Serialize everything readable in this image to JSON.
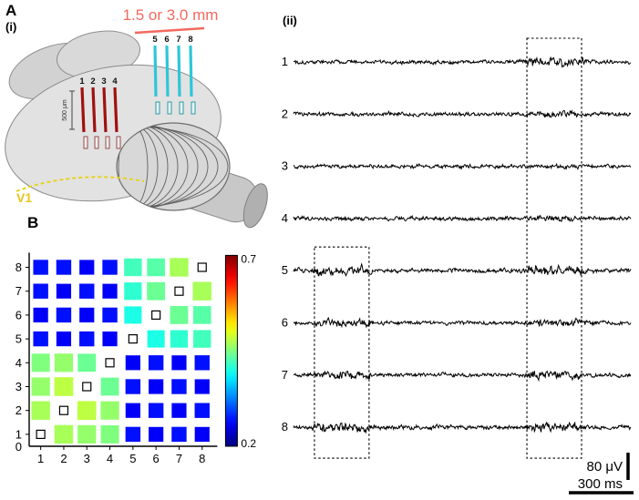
{
  "figure": {
    "panel_a": {
      "label": "A",
      "sub_i": "(i)",
      "sub_ii": "(ii)"
    },
    "panel_b": {
      "label": "B"
    },
    "brain": {
      "distance_annotation": "1.5 or 3.0 mm",
      "area_label": "V1",
      "depth_scale_label": "500 μm",
      "red_electrodes": [
        "1",
        "2",
        "3",
        "4"
      ],
      "cyan_electrodes": [
        "5",
        "6",
        "7",
        "8"
      ],
      "colors": {
        "annotation": "#f4695e",
        "red_array": "#a01010",
        "cyan_array": "#2ec6d8",
        "area_label_color": "#e6c619"
      }
    }
  },
  "chart_data": [
    {
      "type": "heatmap",
      "panel": "B",
      "description": "Pairwise correlation between electrodes 1-8; small open squares mark self-pairs on the diagonal; square size and color scale with correlation value",
      "x_ticklabels": [
        "1",
        "2",
        "3",
        "4",
        "5",
        "6",
        "7",
        "8"
      ],
      "y_ticklabels_top_to_bottom": [
        "8",
        "7",
        "6",
        "5",
        "4",
        "3",
        "2",
        "1"
      ],
      "origin_label": "0",
      "colorbar": {
        "max_label": "0.7",
        "min_label": "0.2",
        "vmin": 0.2,
        "vmax": 0.7,
        "colormap": "jet",
        "position": "right"
      },
      "rows_top_to_bottom": [
        {
          "y": "8",
          "values": [
            0.27,
            0.27,
            0.26,
            0.27,
            0.42,
            0.43,
            0.47,
            null
          ]
        },
        {
          "y": "7",
          "values": [
            0.27,
            0.26,
            0.27,
            0.26,
            0.41,
            0.44,
            null,
            0.47
          ]
        },
        {
          "y": "6",
          "values": [
            0.26,
            0.27,
            0.26,
            0.27,
            0.4,
            null,
            0.44,
            0.43
          ]
        },
        {
          "y": "5",
          "values": [
            0.27,
            0.26,
            0.27,
            0.26,
            null,
            0.4,
            0.41,
            0.42
          ]
        },
        {
          "y": "4",
          "values": [
            0.45,
            0.46,
            0.44,
            null,
            0.26,
            0.27,
            0.26,
            0.27
          ]
        },
        {
          "y": "3",
          "values": [
            0.46,
            0.48,
            null,
            0.44,
            0.27,
            0.26,
            0.27,
            0.26
          ]
        },
        {
          "y": "2",
          "values": [
            0.47,
            null,
            0.48,
            0.46,
            0.26,
            0.27,
            0.26,
            0.27
          ]
        },
        {
          "y": "1",
          "values": [
            null,
            0.47,
            0.46,
            0.45,
            0.27,
            0.26,
            0.27,
            0.26
          ]
        }
      ]
    },
    {
      "type": "line",
      "panel": "A(ii)",
      "description": "Continuous voltage traces recorded on electrodes 1-8; dashed boxes highlight correlated activity epochs",
      "trace_labels": [
        "1",
        "2",
        "3",
        "4",
        "5",
        "6",
        "7",
        "8"
      ],
      "scale_bar": {
        "voltage": "80 μV",
        "time": "300 ms"
      },
      "highlight_boxes": [
        {
          "trace_start": 5,
          "trace_end": 8,
          "x_start": 0.062,
          "x_end": 0.224
        },
        {
          "trace_start": 1,
          "trace_end": 8,
          "x_start": 0.692,
          "x_end": 0.854
        }
      ],
      "traces": [
        {
          "label": "1",
          "seed": 101,
          "base_amp": 3.0,
          "bursts": [
            [
              0.7,
              0.86
            ]
          ],
          "burst_scale": 2.4
        },
        {
          "label": "2",
          "seed": 102,
          "base_amp": 3.0,
          "bursts": [
            [
              0.72,
              0.83
            ]
          ],
          "burst_scale": 1.6
        },
        {
          "label": "3",
          "seed": 103,
          "base_amp": 2.8,
          "bursts": [
            [
              0.75,
              0.83
            ]
          ],
          "burst_scale": 1.4
        },
        {
          "label": "4",
          "seed": 104,
          "base_amp": 3.0,
          "bursts": [
            [
              0.71,
              0.82
            ]
          ],
          "burst_scale": 1.6
        },
        {
          "label": "5",
          "seed": 105,
          "base_amp": 3.2,
          "bursts": [
            [
              0.07,
              0.23
            ],
            [
              0.7,
              0.86
            ]
          ],
          "burst_scale": 2.3
        },
        {
          "label": "6",
          "seed": 106,
          "base_amp": 3.0,
          "bursts": [
            [
              0.08,
              0.22
            ],
            [
              0.73,
              0.88
            ]
          ],
          "burst_scale": 2.0
        },
        {
          "label": "7",
          "seed": 107,
          "base_amp": 3.0,
          "bursts": [
            [
              0.08,
              0.22
            ],
            [
              0.7,
              0.85
            ]
          ],
          "burst_scale": 2.1
        },
        {
          "label": "8",
          "seed": 108,
          "base_amp": 3.2,
          "bursts": [
            [
              0.07,
              0.23
            ],
            [
              0.7,
              0.84
            ]
          ],
          "burst_scale": 2.3
        }
      ]
    }
  ]
}
